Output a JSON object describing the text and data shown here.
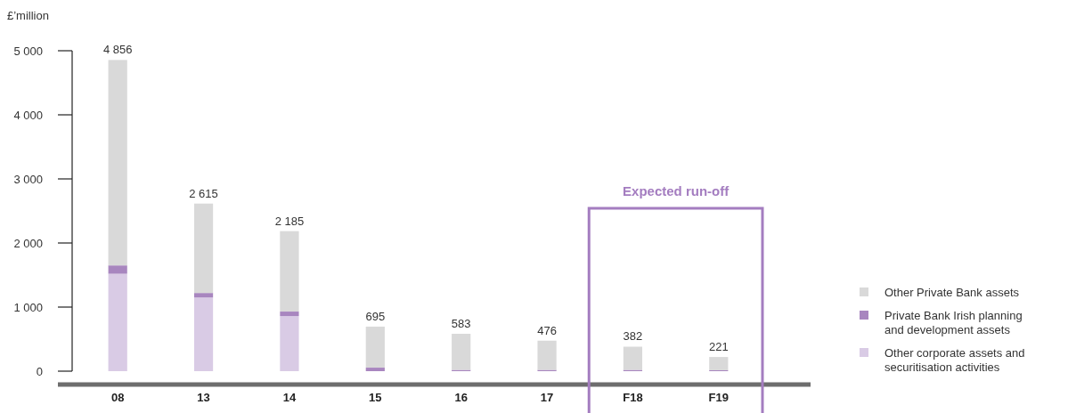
{
  "chart_data": {
    "type": "bar",
    "stacked": true,
    "ylabel": "£’million",
    "categories": [
      "08",
      "13",
      "14",
      "15",
      "16",
      "17",
      "F18",
      "F19"
    ],
    "series": [
      {
        "name": "Other corporate assets and securitisation activities",
        "color": "#d9cbe5",
        "values": [
          1520,
          1150,
          860,
          0,
          0,
          0,
          0,
          0
        ]
      },
      {
        "name": "Private Bank Irish planning and development assets",
        "color": "#a886bf",
        "values": [
          130,
          70,
          70,
          55,
          20,
          20,
          20,
          15
        ]
      },
      {
        "name": "Other Private Bank assets",
        "color": "#d9d9d9",
        "values": [
          3206,
          1395,
          1255,
          640,
          563,
          456,
          362,
          206
        ]
      }
    ],
    "totals": [
      "4 856",
      "2 615",
      "2 185",
      "695",
      "583",
      "476",
      "382",
      "221"
    ],
    "ylim": [
      0,
      5000
    ],
    "yticks": [
      {
        "value": 0,
        "label": "0"
      },
      {
        "value": 1000,
        "label": "1 000"
      },
      {
        "value": 2000,
        "label": "2 000"
      },
      {
        "value": 3000,
        "label": "3 000"
      },
      {
        "value": 4000,
        "label": "4 000"
      },
      {
        "value": 5000,
        "label": "5 000"
      }
    ],
    "annotations": [
      "Expected run-off"
    ],
    "legend": "right"
  }
}
